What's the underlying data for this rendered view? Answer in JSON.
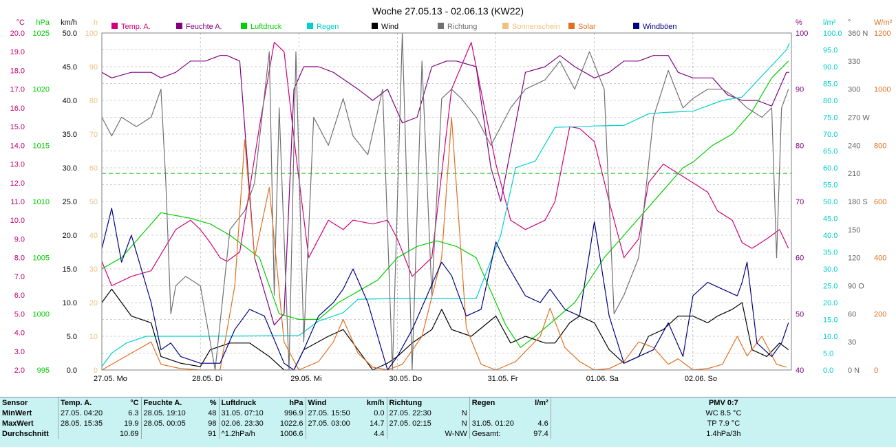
{
  "chart_data": {
    "type": "line",
    "title": "Woche 27.05.13 - 02.06.13 (KW22)",
    "x_labels": [
      "27.05.  Mo",
      "28.05.  Di",
      "29.05.  Mi",
      "30.05.  Do",
      "31.05.  Fr",
      "01.06.  Sa",
      "02.06.  So"
    ],
    "left_axes": [
      {
        "unit": "°C",
        "color": "#c0006a",
        "ticks": [
          "20.0",
          "19.0",
          "18.0",
          "17.0",
          "16.0",
          "15.0",
          "14.0",
          "13.0",
          "12.0",
          "11.0",
          "10.0",
          "9.0",
          "8.0",
          "7.0",
          "6.0",
          "5.0",
          "4.0",
          "3.0",
          "2.0"
        ]
      },
      {
        "unit": "hPa",
        "color": "#00cc00",
        "ticks": [
          "1025",
          "1020",
          "1015",
          "1010",
          "1005",
          "1000",
          "995"
        ]
      },
      {
        "unit": "km/h",
        "color": "#000000",
        "ticks": [
          "50.0",
          "45.0",
          "40.0",
          "35.0",
          "30.0",
          "25.0",
          "20.0",
          "15.0",
          "10.0",
          "5.0",
          "0.0"
        ]
      },
      {
        "unit": "h",
        "color": "#f0c080",
        "ticks": [
          "100",
          "90",
          "80",
          "70",
          "60",
          "50",
          "40",
          "30",
          "20",
          "10",
          "0"
        ]
      }
    ],
    "right_axes": [
      {
        "unit": "%",
        "color": "#800080",
        "ticks": [
          "100",
          "90",
          "80",
          "70",
          "60",
          "50",
          "40"
        ]
      },
      {
        "unit": "l/m²",
        "color": "#00cccc",
        "ticks": [
          "100.0",
          "95.0",
          "90.0",
          "85.0",
          "80.0",
          "75.0",
          "70.0",
          "65.0",
          "60.0",
          "55.0",
          "50.0",
          "45.0",
          "40.0",
          "35.0",
          "30.0",
          "25.0",
          "20.0",
          "15.0",
          "10.0",
          "5.0",
          "0.0"
        ]
      },
      {
        "unit": "°",
        "color": "#606060",
        "ticks": [
          "360 N",
          "330",
          "300",
          "270 W",
          "240",
          "210",
          "180 S",
          "150",
          "120",
          "90  O",
          "60",
          "30",
          "0  N"
        ]
      },
      {
        "unit": "W/m²",
        "color": "#e07020",
        "ticks": [
          "1200",
          "1000",
          "800",
          "600",
          "400",
          "200",
          "0"
        ]
      }
    ],
    "legend": [
      "Temp. A.",
      "Feuchte A.",
      "Luftdruck",
      "Regen",
      "Wind",
      "Richtung",
      "Sonnenschein",
      "Solar",
      "Windböen"
    ],
    "series": [
      {
        "name": "Temp. A.",
        "color": "#d0007a",
        "axis": "°C",
        "x": [
          0,
          0.1,
          0.3,
          0.5,
          0.75,
          0.9,
          1,
          1.1,
          1.2,
          1.27,
          1.4,
          1.6,
          1.75,
          1.85,
          1.97,
          2.1,
          2.3,
          2.45,
          2.55,
          2.75,
          2.9,
          3,
          3.15,
          3.35,
          3.45,
          3.55,
          3.75,
          4,
          4.15,
          4.3,
          4.5,
          4.6,
          4.75,
          4.85,
          5,
          5.15,
          5.3,
          5.45,
          5.55,
          5.7,
          5.85,
          6,
          6.15,
          6.25,
          6.4,
          6.5,
          6.6,
          6.75,
          6.88,
          6.97
        ],
        "y": [
          7.8,
          6.5,
          7.0,
          7.3,
          9.5,
          10.0,
          9.5,
          8.8,
          8.0,
          7.8,
          8.3,
          15.0,
          19.5,
          19.0,
          13.5,
          8.0,
          10.0,
          9.5,
          10.0,
          9.8,
          10.0,
          9.0,
          7.0,
          8.0,
          12.5,
          17.0,
          19.5,
          13.0,
          10.0,
          9.5,
          10.0,
          11.0,
          15.0,
          14.9,
          14.2,
          11.0,
          8.0,
          9.0,
          12.0,
          13.0,
          12.5,
          12.0,
          11.5,
          10.5,
          10.0,
          8.8,
          8.5,
          9.0,
          9.5,
          8.5
        ]
      },
      {
        "name": "Feuchte A.",
        "color": "#800080",
        "axis": "%",
        "x": [
          0,
          0.1,
          0.3,
          0.5,
          0.6,
          0.75,
          0.9,
          1.05,
          1.2,
          1.27,
          1.4,
          1.55,
          1.75,
          1.85,
          1.95,
          2.05,
          2.2,
          2.35,
          2.6,
          2.75,
          2.9,
          3.05,
          3.2,
          3.35,
          3.5,
          3.6,
          3.8,
          3.95,
          4.05,
          4.3,
          4.5,
          4.65,
          4.8,
          5,
          5.15,
          5.3,
          5.45,
          5.6,
          5.75,
          5.85,
          6,
          6.2,
          6.35,
          6.5,
          6.65,
          6.8,
          6.95,
          6.98
        ],
        "y": [
          93,
          92,
          93,
          93,
          92,
          93,
          95,
          95,
          96,
          96,
          95,
          60,
          48,
          50,
          90,
          94,
          94,
          93,
          90,
          88,
          90,
          84,
          85,
          94,
          95,
          95,
          94,
          76,
          70,
          93,
          94,
          96,
          94,
          92,
          93,
          95,
          95,
          96,
          96,
          93,
          92,
          92,
          89,
          88,
          88,
          87,
          93,
          93
        ]
      },
      {
        "name": "Luftdruck",
        "color": "#00d000",
        "axis": "hPa",
        "x": [
          0,
          0.2,
          0.4,
          0.6,
          0.9,
          1.1,
          1.3,
          1.6,
          1.8,
          2,
          2.2,
          2.4,
          2.6,
          2.8,
          3,
          3.2,
          3.4,
          3.6,
          3.8,
          3.95,
          4.1,
          4.25,
          4.4,
          4.6,
          4.8,
          4.95,
          5.1,
          5.3,
          5.5,
          5.7,
          5.9,
          6,
          6.2,
          6.4,
          6.6,
          6.8,
          6.97
        ],
        "y": [
          1004,
          1005,
          1007,
          1009,
          1008.5,
          1008,
          1007,
          1005,
          1000,
          999.5,
          999.5,
          1001,
          1002,
          1003,
          1005,
          1006,
          1006.5,
          1006,
          1005,
          1002,
          999,
          997,
          998,
          999.5,
          1001,
          1003,
          1005,
          1007,
          1009,
          1011,
          1013,
          1013.5,
          1015,
          1016,
          1018,
          1021,
          1022.5
        ]
      },
      {
        "name": "Regen",
        "color": "#00d0d0",
        "axis": "l/m²",
        "x": [
          0,
          0.1,
          0.25,
          0.45,
          0.6,
          1.0,
          2.0,
          2.2,
          2.45,
          2.6,
          3.0,
          3.8,
          4.05,
          4.2,
          4.4,
          4.6,
          4.85,
          5.0,
          5.3,
          5.55,
          5.7,
          6.0,
          6.3,
          6.5,
          6.95,
          6.98
        ],
        "y": [
          1,
          5,
          8,
          10,
          10,
          10,
          10.2,
          14.5,
          17,
          21,
          21.2,
          21.2,
          40,
          60,
          62,
          72,
          72.2,
          72.4,
          72.6,
          76,
          76.4,
          76.8,
          80,
          81,
          95,
          97
        ]
      },
      {
        "name": "Wind",
        "color": "#000000",
        "axis": "km/h",
        "x": [
          0,
          0.1,
          0.3,
          0.5,
          0.6,
          0.8,
          1,
          1.1,
          1.3,
          1.5,
          1.7,
          1.85,
          1.95,
          2.05,
          2.3,
          2.45,
          2.55,
          2.75,
          2.9,
          3,
          3.15,
          3.35,
          3.45,
          3.55,
          3.75,
          4,
          4.15,
          4.3,
          4.5,
          4.6,
          4.75,
          4.85,
          5,
          5.15,
          5.3,
          5.45,
          5.55,
          5.7,
          5.85,
          6,
          6.15,
          6.25,
          6.4,
          6.5,
          6.6,
          6.75,
          6.88,
          6.97
        ],
        "y": [
          10,
          12,
          8,
          7,
          2,
          1,
          0.5,
          3,
          4,
          4,
          2,
          0,
          0,
          3,
          5,
          6,
          4,
          0,
          1,
          2,
          4,
          6,
          9,
          6,
          5,
          8,
          4,
          5,
          4,
          4,
          7,
          8,
          7,
          3,
          1,
          2,
          5,
          6,
          8,
          8,
          7,
          8,
          9,
          10,
          3,
          2,
          4,
          3
        ]
      },
      {
        "name": "Richtung",
        "color": "#707070",
        "axis": "°",
        "x": [
          0,
          0.1,
          0.2,
          0.35,
          0.5,
          0.6,
          0.65,
          0.7,
          0.75,
          0.85,
          1,
          1.15,
          1.3,
          1.45,
          1.55,
          1.7,
          1.75,
          1.8,
          1.9,
          1.97,
          2.05,
          2.15,
          2.3,
          2.45,
          2.55,
          2.7,
          2.85,
          2.95,
          3.05,
          3.15,
          3.25,
          3.35,
          3.45,
          3.55,
          3.65,
          3.8,
          3.95,
          4.05,
          4.15,
          4.3,
          4.5,
          4.65,
          4.8,
          4.95,
          5.1,
          5.2,
          5.3,
          5.45,
          5.6,
          5.75,
          5.9,
          6,
          6.15,
          6.3,
          6.45,
          6.55,
          6.7,
          6.8,
          6.85,
          6.9,
          6.97
        ],
        "y": [
          270,
          250,
          270,
          260,
          270,
          300,
          200,
          60,
          90,
          100,
          90,
          0,
          150,
          170,
          200,
          340,
          80,
          280,
          0,
          340,
          30,
          270,
          240,
          290,
          250,
          230,
          300,
          0,
          360,
          0,
          330,
          80,
          290,
          300,
          290,
          270,
          240,
          260,
          280,
          300,
          310,
          330,
          300,
          340,
          300,
          60,
          80,
          120,
          270,
          320,
          280,
          290,
          300,
          300,
          290,
          280,
          270,
          280,
          120,
          280,
          300
        ]
      },
      {
        "name": "Sonnenschein",
        "color": "#f0c080",
        "axis": "h",
        "x": [],
        "y": []
      },
      {
        "name": "Solar",
        "color": "#e07020",
        "axis": "W/m²",
        "x": [
          0,
          0.3,
          0.5,
          0.6,
          0.8,
          1,
          1.2,
          1.35,
          1.45,
          1.55,
          1.7,
          1.85,
          2,
          2.2,
          2.35,
          2.45,
          2.6,
          2.75,
          2.9,
          3.05,
          3.25,
          3.45,
          3.55,
          3.7,
          3.85,
          4,
          4.2,
          4.45,
          4.55,
          4.7,
          4.85,
          5,
          5.15,
          5.3,
          5.45,
          5.6,
          5.75,
          5.85,
          6,
          6.15,
          6.3,
          6.45,
          6.55,
          6.7,
          6.85,
          6.95
        ],
        "y": [
          0,
          60,
          100,
          20,
          5,
          0,
          0,
          300,
          820,
          400,
          650,
          100,
          0,
          30,
          100,
          180,
          60,
          10,
          0,
          20,
          120,
          400,
          900,
          150,
          20,
          0,
          30,
          120,
          220,
          80,
          30,
          0,
          5,
          30,
          100,
          80,
          20,
          40,
          0,
          5,
          20,
          120,
          50,
          120,
          20,
          10
        ]
      },
      {
        "name": "Windböen",
        "color": "#000080",
        "axis": "km/h",
        "x": [
          0,
          0.1,
          0.2,
          0.3,
          0.4,
          0.5,
          0.6,
          0.7,
          0.8,
          1,
          1.2,
          1.35,
          1.5,
          1.65,
          1.85,
          1.95,
          2.05,
          2.2,
          2.35,
          2.45,
          2.55,
          2.7,
          2.9,
          3,
          3.15,
          3.3,
          3.45,
          3.55,
          3.7,
          3.85,
          4,
          4.1,
          4.3,
          4.45,
          4.55,
          4.7,
          4.85,
          5,
          5.15,
          5.3,
          5.45,
          5.6,
          5.75,
          5.9,
          6,
          6.15,
          6.3,
          6.45,
          6.5,
          6.55,
          6.65,
          6.8,
          6.9,
          6.97
        ],
        "y": [
          18,
          24,
          16,
          20,
          15,
          10,
          3,
          4,
          2,
          1,
          1,
          6,
          9,
          8,
          1,
          0,
          3,
          8,
          10,
          12,
          15,
          10,
          0,
          2,
          6,
          11,
          16,
          14,
          8,
          9,
          19,
          16,
          11,
          10,
          12,
          9,
          8,
          22,
          8,
          1,
          2,
          3,
          7,
          2,
          11,
          13,
          12,
          11,
          13,
          16,
          4,
          2,
          4,
          7
        ]
      }
    ],
    "reference_line": {
      "color": "#00c000",
      "value_hPa": 1012.5
    }
  },
  "stats": {
    "headers": {
      "sensor": "Sensor",
      "temp": "Temp. A.",
      "temp_unit": "°C",
      "hum": "Feuchte A.",
      "hum_unit": "%",
      "press": "Luftdruck",
      "press_unit": "hPa",
      "wind": "Wind",
      "wind_unit": "km/h",
      "dir": "Richtung",
      "rain": "Regen",
      "rain_unit": "l/m²",
      "pmv": "PMV 0:7"
    },
    "rows": [
      {
        "label": "MinWert",
        "temp_t": "27.05.  04:20",
        "temp_v": "6.3",
        "hum_t": "28.05.  19:10",
        "hum_v": "48",
        "press_t": "31.05.  07:10",
        "press_v": "996.9",
        "wind_t": "27.05.  15:50",
        "wind_v": "0.0",
        "dir_t": "27.05.  22:30",
        "dir_v": "N",
        "rain_t": "",
        "rain_v": "",
        "extra": "WC 8.5 °C"
      },
      {
        "label": "MaxWert",
        "temp_t": "28.05.  15:35",
        "temp_v": "19.9",
        "hum_t": "28.05.  00:05",
        "hum_v": "98",
        "press_t": "02.06.  23:30",
        "press_v": "1022.6",
        "wind_t": "27.05.  03:00",
        "wind_v": "14.7",
        "dir_t": "27.05.  02:15",
        "dir_v": "N",
        "rain_t": "31.05.  01:20",
        "rain_v": "4.6",
        "extra": "TP 7.9 °C"
      },
      {
        "label": "Durchschnitt",
        "temp_t": "",
        "temp_v": "10.69",
        "hum_t": "",
        "hum_v": "91",
        "press_t": "^1.2hPa/h",
        "press_v": "1006.6",
        "wind_t": "",
        "wind_v": "4.4",
        "dir_t": "",
        "dir_v": "W-NW",
        "rain_t": "Gesamt:",
        "rain_v": "97.4",
        "extra": "1.4hPa/3h"
      }
    ]
  }
}
